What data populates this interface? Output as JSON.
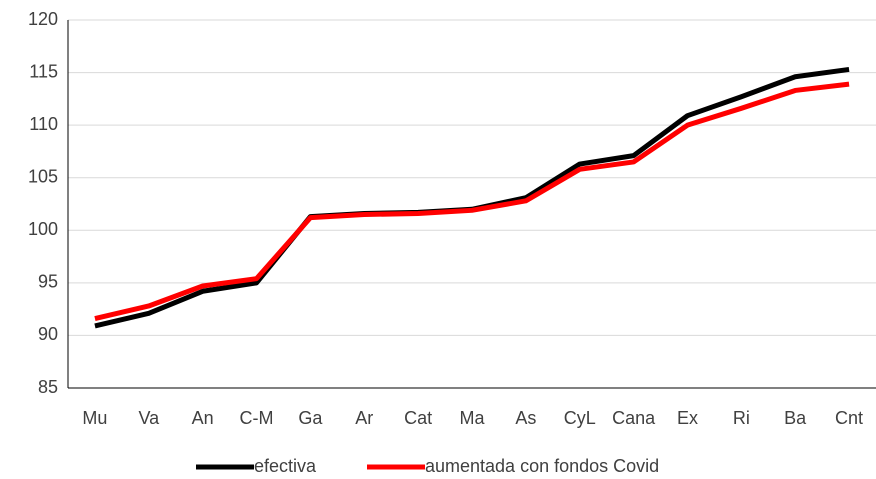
{
  "chart_data": {
    "type": "line",
    "categories": [
      "Mu",
      "Va",
      "An",
      "C-M",
      "Ga",
      "Ar",
      "Cat",
      "Ma",
      "As",
      "CyL",
      "Cana",
      "Ex",
      "Ri",
      "Ba",
      "Cnt"
    ],
    "series": [
      {
        "name": "efectiva",
        "color": "#000000",
        "values": [
          90.9,
          92.1,
          94.2,
          95.0,
          101.3,
          101.6,
          101.7,
          102.0,
          103.1,
          106.3,
          107.1,
          110.9,
          112.7,
          114.6,
          115.3
        ]
      },
      {
        "name": "aumentada con fondos Covid",
        "color": "#ff0000",
        "values": [
          91.6,
          92.8,
          94.7,
          95.4,
          101.2,
          101.5,
          101.6,
          101.9,
          102.8,
          105.8,
          106.5,
          110.0,
          111.6,
          113.3,
          113.9
        ]
      }
    ],
    "ylim": [
      85,
      120
    ],
    "yticks": [
      85,
      90,
      95,
      100,
      105,
      110,
      115,
      120
    ],
    "grid": true,
    "legend": "bottom"
  }
}
